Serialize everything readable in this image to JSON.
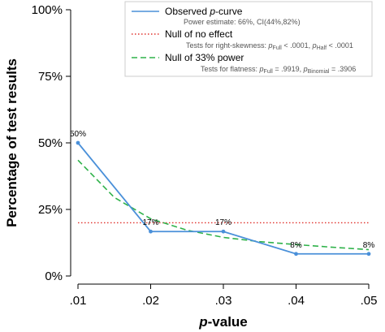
{
  "chart_data": {
    "type": "line",
    "title": "",
    "xlabel_italic": "p",
    "xlabel_rest": "-value",
    "ylabel": "Percentage of test results",
    "x": [
      0.01,
      0.02,
      0.03,
      0.04,
      0.05
    ],
    "x_tick_labels": [
      ".01",
      ".02",
      ".03",
      ".04",
      ".05"
    ],
    "ylim": [
      0,
      100
    ],
    "y_ticks": [
      0,
      25,
      50,
      75,
      100
    ],
    "y_tick_labels": [
      "0%",
      "25%",
      "50%",
      "75%",
      "100%"
    ],
    "grid": false,
    "legend_position": "top-right",
    "series": [
      {
        "key": "observed",
        "name": "Observed p-curve",
        "legend_main_plain": "Observed ",
        "legend_main_italic": "p",
        "legend_main_tail": "-curve",
        "legend_sub": "Power estimate: 66%, CI(44%,82%)",
        "values": [
          50,
          16.7,
          16.7,
          8.3,
          8.3
        ],
        "data_labels": [
          "50%",
          "17%",
          "17%",
          "8%",
          "8%"
        ],
        "color": "#4a90d9",
        "style": "solid"
      },
      {
        "key": "null_effect",
        "name": "Null of no effect",
        "legend_sub_prefix": "Tests for right-skewness: ",
        "legend_sub_full_p": "p",
        "legend_sub_full_sub": "Full",
        "legend_sub_full_val": " < .0001,  ",
        "legend_sub_half_p": "p",
        "legend_sub_half_sub": "Half",
        "legend_sub_half_val": " < .0001",
        "values": [
          20,
          20,
          20,
          20,
          20
        ],
        "color": "#e0332e",
        "style": "dotted"
      },
      {
        "key": "null_33",
        "name": "Null of 33% power",
        "legend_sub_prefix": "Tests for flatness: ",
        "legend_sub_full_p": "p",
        "legend_sub_full_sub": "Full",
        "legend_sub_full_val": " = .9919,  ",
        "legend_sub_bin_p": "p",
        "legend_sub_bin_sub": "Binomial",
        "legend_sub_bin_val": " = .3906",
        "values": [
          43.5,
          21.5,
          14.5,
          11.8,
          9.9
        ],
        "curve_x": [
          0.01,
          0.015,
          0.02,
          0.025,
          0.03,
          0.035,
          0.04,
          0.045,
          0.05
        ],
        "curve_y": [
          43.5,
          29.5,
          21.5,
          17.2,
          14.5,
          12.9,
          11.8,
          10.8,
          9.9
        ],
        "color": "#2fb24a",
        "style": "dashed"
      }
    ]
  }
}
